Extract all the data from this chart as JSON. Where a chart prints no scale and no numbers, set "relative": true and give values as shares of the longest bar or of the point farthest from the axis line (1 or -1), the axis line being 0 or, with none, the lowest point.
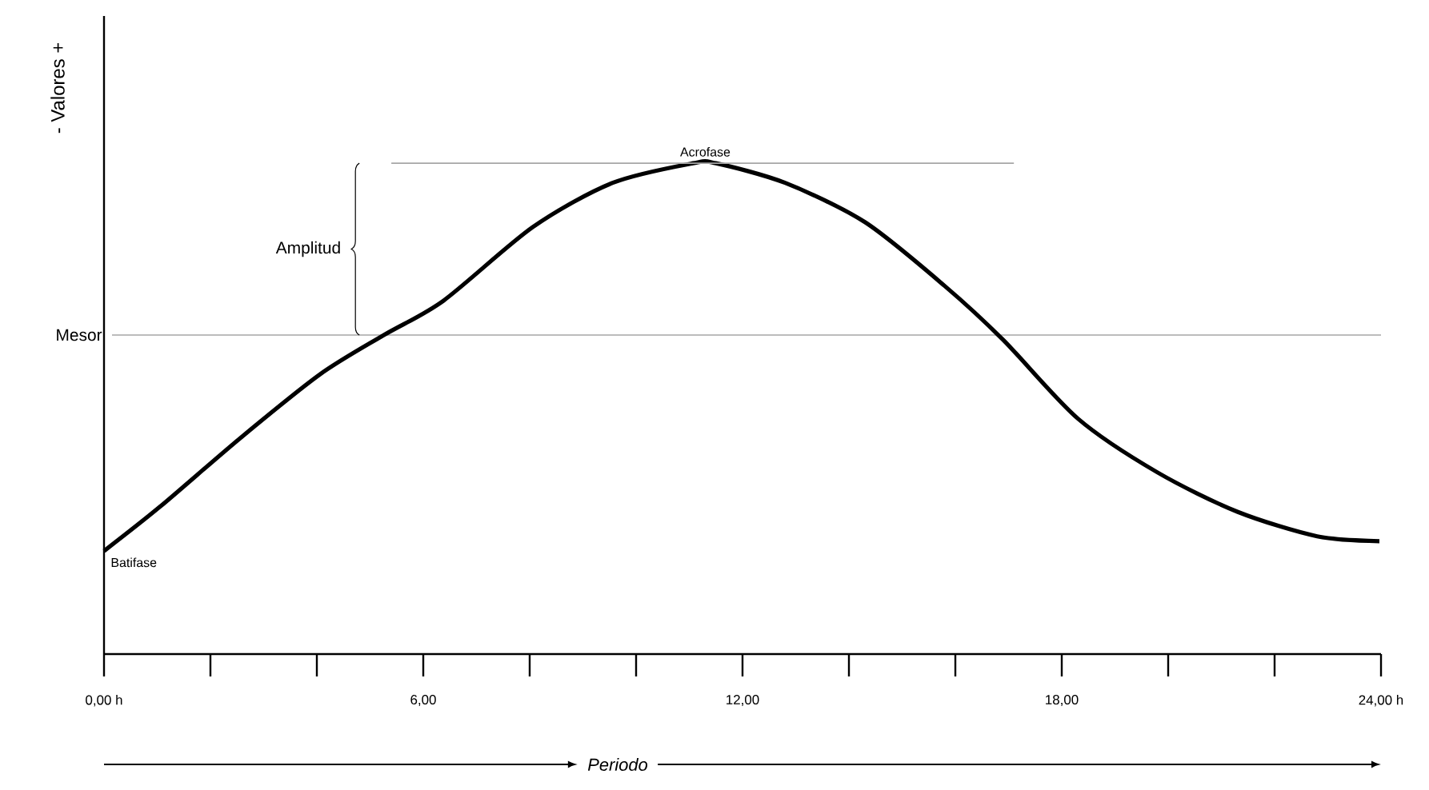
{
  "chart_data": {
    "type": "line",
    "xlabel": "Periodo",
    "ylabel": "- Valores +",
    "relative": true,
    "color": "#000000",
    "x": [
      0,
      1.05,
      2.56,
      4.06,
      5.26,
      6.38,
      8.06,
      9.56,
      11.07,
      11.5,
      12.8,
      14.3,
      15.8,
      16.9,
      18.3,
      19.8,
      21.3,
      22.8,
      23.97
    ],
    "values": [
      0.21,
      0.3,
      0.44,
      0.57,
      0.65,
      0.72,
      0.87,
      0.96,
      1.0,
      1.0,
      0.96,
      0.88,
      0.75,
      0.64,
      0.48,
      0.37,
      0.29,
      0.24,
      0.23
    ],
    "xlim": [
      0,
      24
    ],
    "xticks": [
      {
        "value": 0,
        "label": "0,00 h"
      },
      {
        "value": 2,
        "label": null
      },
      {
        "value": 4,
        "label": null
      },
      {
        "value": 6,
        "label": "6,00"
      },
      {
        "value": 8,
        "label": null
      },
      {
        "value": 10,
        "label": null
      },
      {
        "value": 12,
        "label": "12,00"
      },
      {
        "value": 14,
        "label": null
      },
      {
        "value": 16,
        "label": null
      },
      {
        "value": 18,
        "label": "18,00"
      },
      {
        "value": 20,
        "label": null
      },
      {
        "value": 22,
        "label": null
      },
      {
        "value": 24,
        "label": "24,00 h"
      }
    ],
    "ref_lines": [
      {
        "axis": "y",
        "value": 0.65,
        "label": "Mesor",
        "color": "#a6a6a6"
      }
    ],
    "annotations": [
      {
        "text": "Acrofase",
        "x": 11.3,
        "y": 1.0
      },
      {
        "text": "Batifase",
        "x": 0,
        "y": 0.21
      },
      "Amplitud"
    ]
  }
}
